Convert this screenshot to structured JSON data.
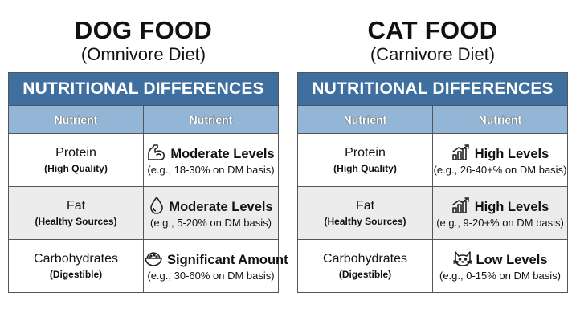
{
  "panels": [
    {
      "title": "DOG FOOD",
      "subtitle": "(Omnivore Diet)",
      "banner": "NUTRITIONAL DIFFERENCES",
      "headers": [
        "Nutrient",
        "Nutrient"
      ],
      "rows": [
        {
          "nutrient": "Protein",
          "qualifier": "(High Quality)",
          "icon": "flexed-arm-icon",
          "value": "Moderate Levels",
          "detail": "(e.g., 18-30% on DM basis)"
        },
        {
          "nutrient": "Fat",
          "qualifier": "(Healthy Sources)",
          "icon": "oil-drop-icon",
          "value": "Moderate Levels",
          "detail": "(e.g., 5-20% on DM basis)"
        },
        {
          "nutrient": "Carbohydrates",
          "qualifier": "(Digestible)",
          "icon": "grain-bowl-icon",
          "value": "Significant Amount",
          "detail": "(e.g., 30-60% on DM basis)"
        }
      ]
    },
    {
      "title": "CAT FOOD",
      "subtitle": "(Carnivore Diet)",
      "banner": "NUTRITIONAL DIFFERENCES",
      "headers": [
        "Nutrient",
        "Nutrient"
      ],
      "rows": [
        {
          "nutrient": "Protein",
          "qualifier": "(High Quality)",
          "icon": "rising-bar-chart-icon",
          "value": "High Levels",
          "detail": "(e.g., 26-40+% on DM basis)"
        },
        {
          "nutrient": "Fat",
          "qualifier": "(Healthy Sources)",
          "icon": "rising-bar-chart-icon",
          "value": "High Levels",
          "detail": "(e.g., 9-20+% on DM basis)"
        },
        {
          "nutrient": "Carbohydrates",
          "qualifier": "(Digestible)",
          "icon": "cat-face-icon",
          "value": "Low Levels",
          "detail": "(e.g., 0-15% on DM basis)"
        }
      ]
    }
  ],
  "colors": {
    "banner": "#3e6f9e",
    "column_header": "#94b6d6",
    "shaded_row": "#ececec",
    "border": "#555555"
  }
}
